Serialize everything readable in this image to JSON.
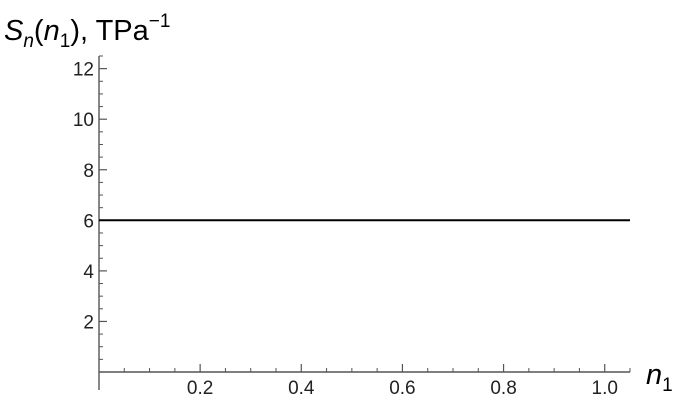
{
  "chart_data": {
    "type": "line",
    "ylabel": {
      "base": "S",
      "base_sub": "n",
      "open": "(",
      "arg": "n",
      "arg_sub": "1",
      "close": "), ",
      "unit": "TPa",
      "unit_sup": "−1"
    },
    "xlabel": {
      "base": "n",
      "base_sub": "1"
    },
    "xlim": [
      0,
      1.05
    ],
    "ylim": [
      0,
      12.5
    ],
    "xticks": [
      {
        "value": 0.2,
        "label": "0.2"
      },
      {
        "value": 0.4,
        "label": "0.4"
      },
      {
        "value": 0.6,
        "label": "0.6"
      },
      {
        "value": 0.8,
        "label": "0.8"
      },
      {
        "value": 1.0,
        "label": "1.0"
      }
    ],
    "yticks": [
      {
        "value": 2,
        "label": "2"
      },
      {
        "value": 4,
        "label": "4"
      },
      {
        "value": 6,
        "label": "6"
      },
      {
        "value": 8,
        "label": "8"
      },
      {
        "value": 10,
        "label": "10"
      },
      {
        "value": 12,
        "label": "12"
      }
    ],
    "series": [
      {
        "x": [
          0,
          1.05
        ],
        "y": [
          6,
          6
        ]
      }
    ],
    "grid": false,
    "colors": {
      "axis": "#555555",
      "line": "#000000",
      "text": "#222222"
    }
  }
}
